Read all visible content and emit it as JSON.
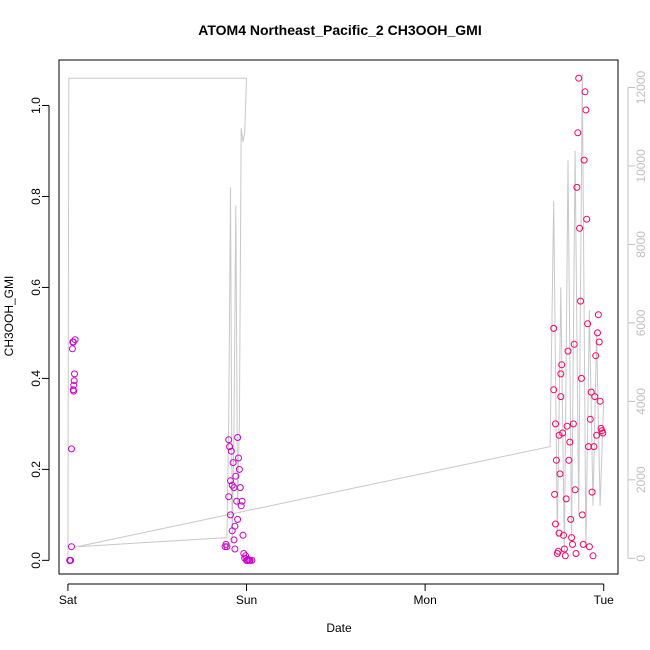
{
  "chart_data": {
    "type": "scatter",
    "title": "ATOM4 Northeast_Pacific_2 CH3OOH_GMI",
    "xlabel": "Date",
    "ylabel": "CH3OOH_GMI",
    "x_ticks": [
      "Sat",
      "Sun",
      "Mon",
      "Tue"
    ],
    "x_range_days": [
      -0.05,
      3.08
    ],
    "y_ticks": [
      0.0,
      0.2,
      0.4,
      0.6,
      0.8,
      1.0
    ],
    "ylim": [
      -0.03,
      1.1
    ],
    "y2_ticks": [
      0,
      2000,
      4000,
      6000,
      8000,
      10000,
      12000
    ],
    "y2lim": [
      -400,
      12700
    ],
    "grid": false,
    "colors": {
      "points_low_altitude": "#cc00cc",
      "points_high_altitude": "#ff0066",
      "altitude_line": "#c8c8c8",
      "axis": "#000000",
      "secondary_axis": "#c0c0c0"
    },
    "series": [
      {
        "values": [
          [
            0.01,
            0.0
          ],
          [
            0.012,
            0.0
          ],
          [
            0.015,
            0.0
          ],
          [
            0.02,
            0.245
          ],
          [
            0.02,
            0.03
          ],
          [
            0.025,
            0.465
          ],
          [
            0.027,
            0.48
          ],
          [
            0.03,
            0.48
          ],
          [
            0.03,
            0.375
          ],
          [
            0.032,
            0.372
          ],
          [
            0.033,
            0.385
          ],
          [
            0.035,
            0.395
          ],
          [
            0.037,
            0.41
          ],
          [
            0.04,
            0.485
          ],
          [
            0.88,
            0.03
          ],
          [
            0.885,
            0.035
          ],
          [
            0.89,
            0.03
          ],
          [
            0.9,
            0.265
          ],
          [
            0.9,
            0.14
          ],
          [
            0.905,
            0.25
          ],
          [
            0.91,
            0.175
          ],
          [
            0.91,
            0.1
          ],
          [
            0.915,
            0.24
          ],
          [
            0.92,
            0.165
          ],
          [
            0.92,
            0.065
          ],
          [
            0.925,
            0.215
          ],
          [
            0.93,
            0.16
          ],
          [
            0.93,
            0.045
          ],
          [
            0.935,
            0.025
          ],
          [
            0.935,
            0.075
          ],
          [
            0.94,
            0.185
          ],
          [
            0.945,
            0.13
          ],
          [
            0.95,
            0.27
          ],
          [
            0.95,
            0.09
          ],
          [
            0.955,
            0.225
          ],
          [
            0.96,
            0.2
          ],
          [
            0.965,
            0.16
          ],
          [
            0.97,
            0.12
          ],
          [
            0.975,
            0.13
          ],
          [
            0.98,
            0.055
          ],
          [
            0.985,
            0.015
          ],
          [
            0.99,
            0.005
          ],
          [
            0.995,
            0.01
          ],
          [
            1.0,
            0.0
          ],
          [
            1.005,
            0.0
          ],
          [
            1.01,
            0.002
          ],
          [
            1.015,
            0.0
          ],
          [
            1.02,
            0.0
          ],
          [
            1.03,
            0.0
          ]
        ]
      },
      {
        "values": [
          [
            2.72,
            0.51
          ],
          [
            2.72,
            0.375
          ],
          [
            2.725,
            0.145
          ],
          [
            2.73,
            0.08
          ],
          [
            2.73,
            0.3
          ],
          [
            2.735,
            0.22
          ],
          [
            2.74,
            0.015
          ],
          [
            2.745,
            0.02
          ],
          [
            2.75,
            0.275
          ],
          [
            2.75,
            0.06
          ],
          [
            2.755,
            0.19
          ],
          [
            2.76,
            0.36
          ],
          [
            2.76,
            0.41
          ],
          [
            2.765,
            0.43
          ],
          [
            2.77,
            0.28
          ],
          [
            2.775,
            0.055
          ],
          [
            2.78,
            0.025
          ],
          [
            2.785,
            0.01
          ],
          [
            2.79,
            0.135
          ],
          [
            2.795,
            0.295
          ],
          [
            2.8,
            0.46
          ],
          [
            2.805,
            0.22
          ],
          [
            2.81,
            0.26
          ],
          [
            2.815,
            0.09
          ],
          [
            2.82,
            0.05
          ],
          [
            2.825,
            0.035
          ],
          [
            2.83,
            0.3
          ],
          [
            2.835,
            0.475
          ],
          [
            2.84,
            0.155
          ],
          [
            2.845,
            0.015
          ],
          [
            2.85,
            0.82
          ],
          [
            2.855,
            0.94
          ],
          [
            2.86,
            1.06
          ],
          [
            2.865,
            0.73
          ],
          [
            2.87,
            0.57
          ],
          [
            2.875,
            0.4
          ],
          [
            2.88,
            0.1
          ],
          [
            2.885,
            0.035
          ],
          [
            2.89,
            0.88
          ],
          [
            2.895,
            1.03
          ],
          [
            2.9,
            0.99
          ],
          [
            2.905,
            0.75
          ],
          [
            2.91,
            0.52
          ],
          [
            2.915,
            0.25
          ],
          [
            2.92,
            0.03
          ],
          [
            2.925,
            0.31
          ],
          [
            2.93,
            0.37
          ],
          [
            2.935,
            0.15
          ],
          [
            2.94,
            0.01
          ],
          [
            2.945,
            0.25
          ],
          [
            2.95,
            0.36
          ],
          [
            2.955,
            0.45
          ],
          [
            2.96,
            0.275
          ],
          [
            2.965,
            0.5
          ],
          [
            2.97,
            0.54
          ],
          [
            2.975,
            0.48
          ],
          [
            2.98,
            0.35
          ],
          [
            2.985,
            0.29
          ],
          [
            2.99,
            0.285
          ],
          [
            2.995,
            0.28
          ]
        ]
      }
    ],
    "altitude_line": [
      [
        0.0,
        -0.01
      ],
      [
        0.005,
        1.06
      ],
      [
        1.0,
        1.06
      ],
      [
        0.99,
        0.94
      ],
      [
        0.98,
        0.92
      ],
      [
        0.97,
        0.95
      ],
      [
        0.96,
        0.3
      ],
      [
        0.95,
        0.12
      ],
      [
        0.94,
        0.78
      ],
      [
        0.93,
        0.3
      ],
      [
        0.92,
        0.04
      ],
      [
        0.91,
        0.82
      ],
      [
        0.9,
        0.3
      ],
      [
        0.89,
        0.05
      ],
      [
        0.05,
        0.03
      ],
      [
        2.7,
        0.25
      ],
      [
        2.72,
        0.79
      ],
      [
        2.74,
        0.05
      ],
      [
        2.76,
        0.6
      ],
      [
        2.78,
        0.02
      ],
      [
        2.8,
        0.88
      ],
      [
        2.82,
        0.05
      ],
      [
        2.84,
        0.9
      ],
      [
        2.86,
        0.1
      ],
      [
        2.88,
        1.07
      ],
      [
        2.9,
        0.03
      ],
      [
        2.92,
        0.55
      ],
      [
        2.94,
        0.12
      ],
      [
        2.96,
        0.5
      ],
      [
        2.98,
        0.12
      ],
      [
        3.0,
        0.35
      ]
    ]
  }
}
